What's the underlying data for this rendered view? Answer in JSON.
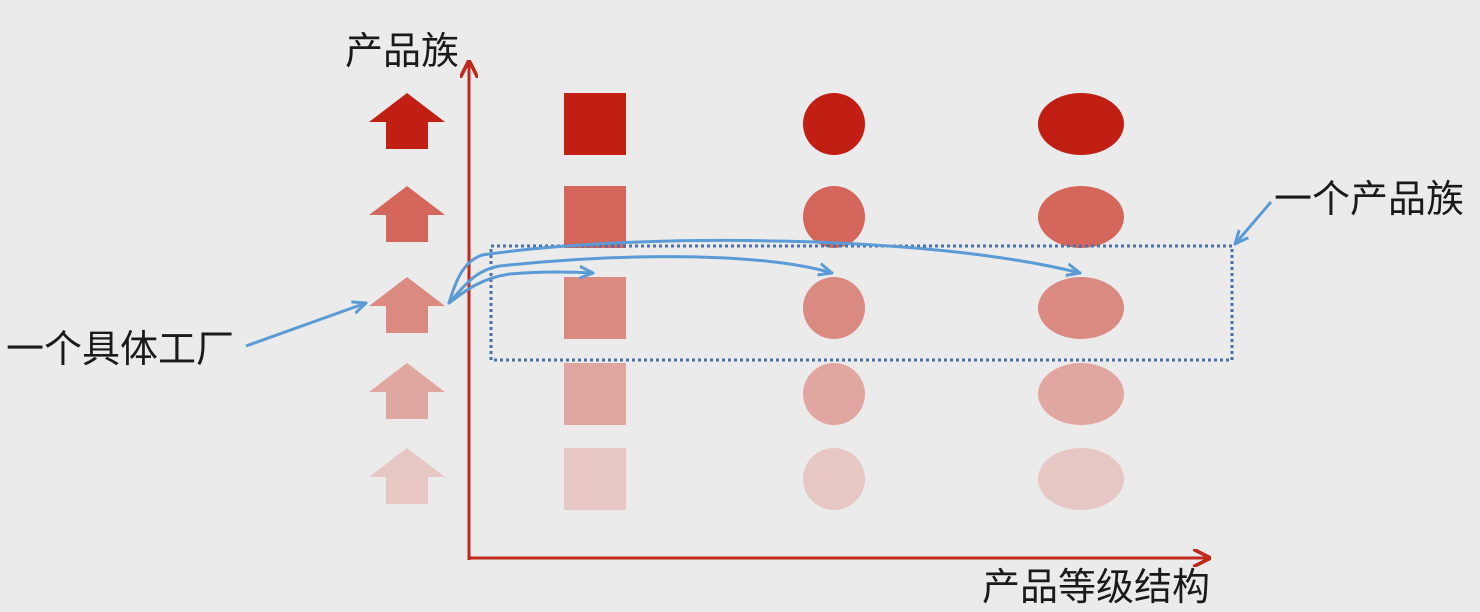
{
  "axes": {
    "y_label": "产品族",
    "x_label": "产品等级结构"
  },
  "annotations": {
    "factory_label": "一个具体工厂",
    "family_label": "一个产品族"
  },
  "grid": {
    "rows": 5,
    "shapes": [
      "arrow-icon",
      "square",
      "circle",
      "ellipse"
    ],
    "row_colors": [
      "#c21f14",
      "#d4665c",
      "#db8a82",
      "#e0a7a1",
      "#e6c7c4"
    ]
  },
  "colors": {
    "background": "#ebebeb",
    "axis": "#c0281c",
    "annotation": "#5b9bd5",
    "highlight_box": "#4a70a8",
    "text": "#1a1a1a"
  }
}
